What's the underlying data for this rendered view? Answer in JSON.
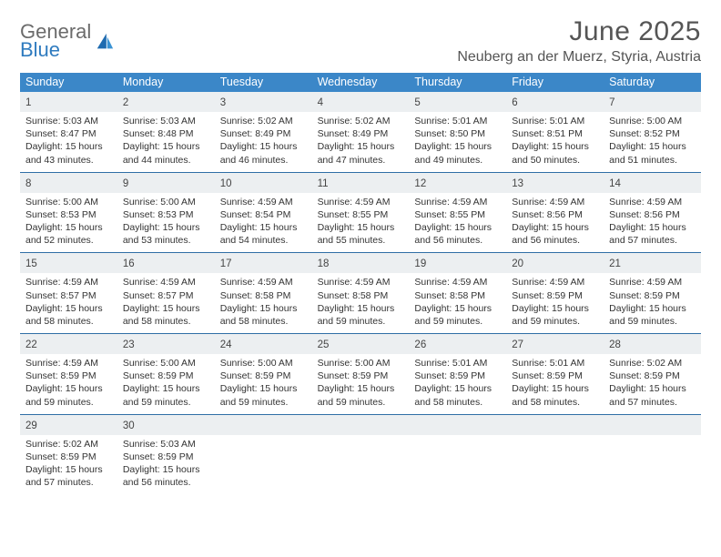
{
  "brand": {
    "word1": "General",
    "word2": "Blue"
  },
  "title": "June 2025",
  "location": "Neuberg an der Muerz, Styria, Austria",
  "colors": {
    "header_bg": "#3b87c8",
    "week_divider": "#2f6ea6",
    "daynum_bg": "#eceff1",
    "text": "#333333",
    "title_text": "#555555",
    "logo_gray": "#6b6b6b",
    "logo_blue": "#2f7bbf"
  },
  "dow": [
    "Sunday",
    "Monday",
    "Tuesday",
    "Wednesday",
    "Thursday",
    "Friday",
    "Saturday"
  ],
  "days": [
    {
      "n": "1",
      "sr": "5:03 AM",
      "ss": "8:47 PM",
      "d1": "15 hours",
      "d2": "and 43 minutes."
    },
    {
      "n": "2",
      "sr": "5:03 AM",
      "ss": "8:48 PM",
      "d1": "15 hours",
      "d2": "and 44 minutes."
    },
    {
      "n": "3",
      "sr": "5:02 AM",
      "ss": "8:49 PM",
      "d1": "15 hours",
      "d2": "and 46 minutes."
    },
    {
      "n": "4",
      "sr": "5:02 AM",
      "ss": "8:49 PM",
      "d1": "15 hours",
      "d2": "and 47 minutes."
    },
    {
      "n": "5",
      "sr": "5:01 AM",
      "ss": "8:50 PM",
      "d1": "15 hours",
      "d2": "and 49 minutes."
    },
    {
      "n": "6",
      "sr": "5:01 AM",
      "ss": "8:51 PM",
      "d1": "15 hours",
      "d2": "and 50 minutes."
    },
    {
      "n": "7",
      "sr": "5:00 AM",
      "ss": "8:52 PM",
      "d1": "15 hours",
      "d2": "and 51 minutes."
    },
    {
      "n": "8",
      "sr": "5:00 AM",
      "ss": "8:53 PM",
      "d1": "15 hours",
      "d2": "and 52 minutes."
    },
    {
      "n": "9",
      "sr": "5:00 AM",
      "ss": "8:53 PM",
      "d1": "15 hours",
      "d2": "and 53 minutes."
    },
    {
      "n": "10",
      "sr": "4:59 AM",
      "ss": "8:54 PM",
      "d1": "15 hours",
      "d2": "and 54 minutes."
    },
    {
      "n": "11",
      "sr": "4:59 AM",
      "ss": "8:55 PM",
      "d1": "15 hours",
      "d2": "and 55 minutes."
    },
    {
      "n": "12",
      "sr": "4:59 AM",
      "ss": "8:55 PM",
      "d1": "15 hours",
      "d2": "and 56 minutes."
    },
    {
      "n": "13",
      "sr": "4:59 AM",
      "ss": "8:56 PM",
      "d1": "15 hours",
      "d2": "and 56 minutes."
    },
    {
      "n": "14",
      "sr": "4:59 AM",
      "ss": "8:56 PM",
      "d1": "15 hours",
      "d2": "and 57 minutes."
    },
    {
      "n": "15",
      "sr": "4:59 AM",
      "ss": "8:57 PM",
      "d1": "15 hours",
      "d2": "and 58 minutes."
    },
    {
      "n": "16",
      "sr": "4:59 AM",
      "ss": "8:57 PM",
      "d1": "15 hours",
      "d2": "and 58 minutes."
    },
    {
      "n": "17",
      "sr": "4:59 AM",
      "ss": "8:58 PM",
      "d1": "15 hours",
      "d2": "and 58 minutes."
    },
    {
      "n": "18",
      "sr": "4:59 AM",
      "ss": "8:58 PM",
      "d1": "15 hours",
      "d2": "and 59 minutes."
    },
    {
      "n": "19",
      "sr": "4:59 AM",
      "ss": "8:58 PM",
      "d1": "15 hours",
      "d2": "and 59 minutes."
    },
    {
      "n": "20",
      "sr": "4:59 AM",
      "ss": "8:59 PM",
      "d1": "15 hours",
      "d2": "and 59 minutes."
    },
    {
      "n": "21",
      "sr": "4:59 AM",
      "ss": "8:59 PM",
      "d1": "15 hours",
      "d2": "and 59 minutes."
    },
    {
      "n": "22",
      "sr": "4:59 AM",
      "ss": "8:59 PM",
      "d1": "15 hours",
      "d2": "and 59 minutes."
    },
    {
      "n": "23",
      "sr": "5:00 AM",
      "ss": "8:59 PM",
      "d1": "15 hours",
      "d2": "and 59 minutes."
    },
    {
      "n": "24",
      "sr": "5:00 AM",
      "ss": "8:59 PM",
      "d1": "15 hours",
      "d2": "and 59 minutes."
    },
    {
      "n": "25",
      "sr": "5:00 AM",
      "ss": "8:59 PM",
      "d1": "15 hours",
      "d2": "and 59 minutes."
    },
    {
      "n": "26",
      "sr": "5:01 AM",
      "ss": "8:59 PM",
      "d1": "15 hours",
      "d2": "and 58 minutes."
    },
    {
      "n": "27",
      "sr": "5:01 AM",
      "ss": "8:59 PM",
      "d1": "15 hours",
      "d2": "and 58 minutes."
    },
    {
      "n": "28",
      "sr": "5:02 AM",
      "ss": "8:59 PM",
      "d1": "15 hours",
      "d2": "and 57 minutes."
    },
    {
      "n": "29",
      "sr": "5:02 AM",
      "ss": "8:59 PM",
      "d1": "15 hours",
      "d2": "and 57 minutes."
    },
    {
      "n": "30",
      "sr": "5:03 AM",
      "ss": "8:59 PM",
      "d1": "15 hours",
      "d2": "and 56 minutes."
    }
  ],
  "labels": {
    "sunrise": "Sunrise:",
    "sunset": "Sunset:",
    "daylight": "Daylight:"
  }
}
